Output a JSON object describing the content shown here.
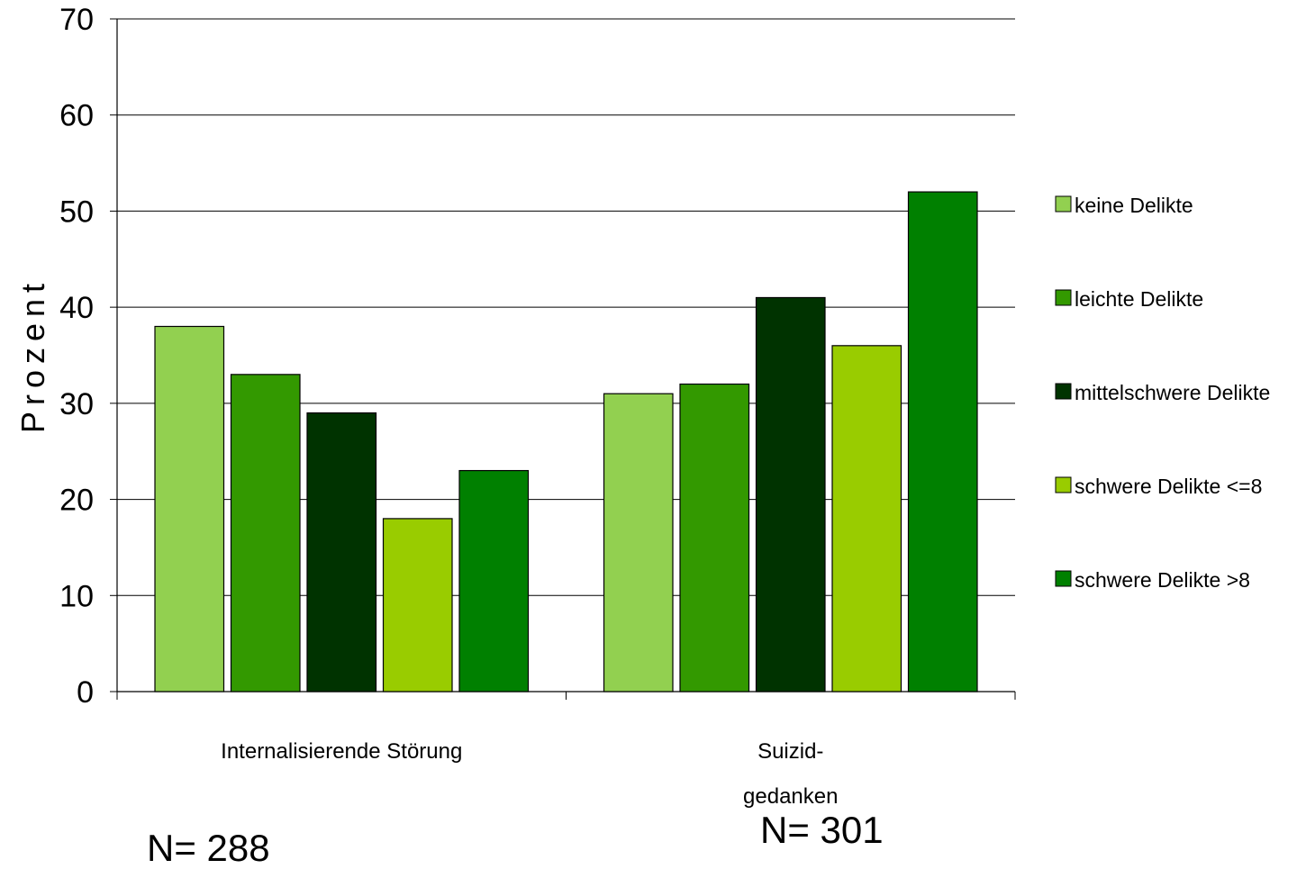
{
  "chart_data": {
    "type": "bar",
    "ylabel": "Prozent",
    "ylim": [
      0,
      70
    ],
    "yticks": [
      0,
      10,
      20,
      30,
      40,
      50,
      60,
      70
    ],
    "grid": true,
    "legend_position": "right",
    "categories": [
      {
        "lines": [
          "Internalisierende Störung"
        ]
      },
      {
        "lines": [
          "Suizid-",
          "gedanken"
        ]
      }
    ],
    "series": [
      {
        "name": "keine Delikte",
        "color": "#92d050",
        "values": [
          38,
          31
        ]
      },
      {
        "name": "leichte Delikte",
        "color": "#339900",
        "values": [
          33,
          32
        ]
      },
      {
        "name": "mittelschwere Delikte",
        "color": "#003300",
        "values": [
          29,
          41
        ]
      },
      {
        "name": "schwere Delikte <=8",
        "color": "#99cc00",
        "values": [
          18,
          36
        ]
      },
      {
        "name": "schwere Delikte >8",
        "color": "#008000",
        "values": [
          23,
          52
        ]
      }
    ],
    "annotations": [
      "N= 288",
      "N= 301"
    ]
  }
}
